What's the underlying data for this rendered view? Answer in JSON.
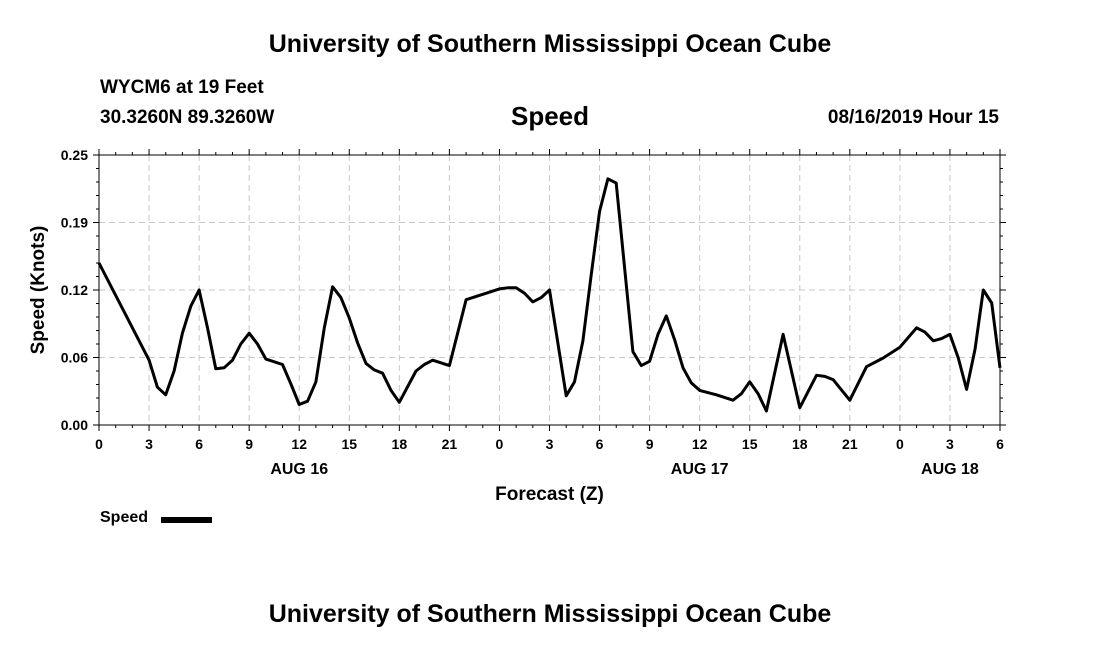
{
  "header": {
    "title": "University of Southern Mississippi Ocean Cube",
    "station": "WYCM6 at 19 Feet",
    "coordinates": "30.3260N 89.3260W",
    "subtitle": "Speed",
    "datetime": "08/16/2019 Hour 15"
  },
  "footer": {
    "title": "University of Southern Mississippi Ocean Cube"
  },
  "legend": {
    "label": "Speed"
  },
  "chart_data": {
    "type": "line",
    "title": "Speed",
    "xlabel": "Forecast (Z)",
    "ylabel": "Speed (Knots)",
    "ylim": [
      0,
      0.25
    ],
    "xlim": [
      "2019-08-16T00:00Z",
      "2019-08-18T06:00Z"
    ],
    "yticks": [
      "0.00",
      "0.06",
      "0.12",
      "0.19",
      "0.25"
    ],
    "xticks": [
      {
        "time": "2019-08-16T00:00Z",
        "label": "0"
      },
      {
        "time": "2019-08-16T03:00Z",
        "label": "3"
      },
      {
        "time": "2019-08-16T06:00Z",
        "label": "6"
      },
      {
        "time": "2019-08-16T09:00Z",
        "label": "9"
      },
      {
        "time": "2019-08-16T12:00Z",
        "label": "12"
      },
      {
        "time": "2019-08-16T15:00Z",
        "label": "15"
      },
      {
        "time": "2019-08-16T18:00Z",
        "label": "18"
      },
      {
        "time": "2019-08-16T21:00Z",
        "label": "21"
      },
      {
        "time": "2019-08-17T00:00Z",
        "label": "0"
      },
      {
        "time": "2019-08-17T03:00Z",
        "label": "3"
      },
      {
        "time": "2019-08-17T06:00Z",
        "label": "6"
      },
      {
        "time": "2019-08-17T09:00Z",
        "label": "9"
      },
      {
        "time": "2019-08-17T12:00Z",
        "label": "12"
      },
      {
        "time": "2019-08-17T15:00Z",
        "label": "15"
      },
      {
        "time": "2019-08-17T18:00Z",
        "label": "18"
      },
      {
        "time": "2019-08-17T21:00Z",
        "label": "21"
      },
      {
        "time": "2019-08-18T00:00Z",
        "label": "0"
      },
      {
        "time": "2019-08-18T03:00Z",
        "label": "3"
      },
      {
        "time": "2019-08-18T06:00Z",
        "label": "6"
      }
    ],
    "date_labels": [
      {
        "time": "2019-08-16T12:00Z",
        "label": "AUG 16"
      },
      {
        "time": "2019-08-17T12:00Z",
        "label": "AUG 17"
      },
      {
        "time": "2019-08-18T03:00Z",
        "label": "AUG 18"
      }
    ],
    "grid": true,
    "legend_position": "bottom-left",
    "series": [
      {
        "name": "Speed",
        "color": "#000000",
        "points": [
          [
            "2019-08-16T00:00Z",
            0.15
          ],
          [
            "2019-08-16T01:00Z",
            0.12
          ],
          [
            "2019-08-16T02:00Z",
            0.09
          ],
          [
            "2019-08-16T03:00Z",
            0.06
          ],
          [
            "2019-08-16T03:30Z",
            0.035
          ],
          [
            "2019-08-16T04:00Z",
            0.028
          ],
          [
            "2019-08-16T04:30Z",
            0.05
          ],
          [
            "2019-08-16T05:00Z",
            0.085
          ],
          [
            "2019-08-16T05:30Z",
            0.11
          ],
          [
            "2019-08-16T06:00Z",
            0.125
          ],
          [
            "2019-08-16T06:30Z",
            0.09
          ],
          [
            "2019-08-16T07:00Z",
            0.052
          ],
          [
            "2019-08-16T07:30Z",
            0.053
          ],
          [
            "2019-08-16T08:00Z",
            0.06
          ],
          [
            "2019-08-16T08:30Z",
            0.075
          ],
          [
            "2019-08-16T09:00Z",
            0.085
          ],
          [
            "2019-08-16T09:30Z",
            0.075
          ],
          [
            "2019-08-16T10:00Z",
            0.061
          ],
          [
            "2019-08-16T11:00Z",
            0.056
          ],
          [
            "2019-08-16T11:30Z",
            0.038
          ],
          [
            "2019-08-16T12:00Z",
            0.019
          ],
          [
            "2019-08-16T12:30Z",
            0.022
          ],
          [
            "2019-08-16T13:00Z",
            0.04
          ],
          [
            "2019-08-16T13:30Z",
            0.09
          ],
          [
            "2019-08-16T14:00Z",
            0.128
          ],
          [
            "2019-08-16T14:30Z",
            0.118
          ],
          [
            "2019-08-16T15:00Z",
            0.099
          ],
          [
            "2019-08-16T15:30Z",
            0.076
          ],
          [
            "2019-08-16T16:00Z",
            0.057
          ],
          [
            "2019-08-16T16:30Z",
            0.051
          ],
          [
            "2019-08-16T17:00Z",
            0.048
          ],
          [
            "2019-08-16T17:30Z",
            0.032
          ],
          [
            "2019-08-16T18:00Z",
            0.021
          ],
          [
            "2019-08-16T19:00Z",
            0.05
          ],
          [
            "2019-08-16T19:30Z",
            0.056
          ],
          [
            "2019-08-16T20:00Z",
            0.06
          ],
          [
            "2019-08-16T21:00Z",
            0.055
          ],
          [
            "2019-08-16T22:00Z",
            0.116
          ],
          [
            "2019-08-16T23:00Z",
            0.121
          ],
          [
            "2019-08-17T00:00Z",
            0.126
          ],
          [
            "2019-08-17T00:30Z",
            0.127
          ],
          [
            "2019-08-17T01:00Z",
            0.127
          ],
          [
            "2019-08-17T01:30Z",
            0.122
          ],
          [
            "2019-08-17T02:00Z",
            0.114
          ],
          [
            "2019-08-17T02:30Z",
            0.118
          ],
          [
            "2019-08-17T03:00Z",
            0.125
          ],
          [
            "2019-08-17T04:00Z",
            0.027
          ],
          [
            "2019-08-17T04:30Z",
            0.04
          ],
          [
            "2019-08-17T05:00Z",
            0.078
          ],
          [
            "2019-08-17T05:30Z",
            0.139
          ],
          [
            "2019-08-17T06:00Z",
            0.198
          ],
          [
            "2019-08-17T06:30Z",
            0.228
          ],
          [
            "2019-08-17T07:00Z",
            0.224
          ],
          [
            "2019-08-17T08:00Z",
            0.068
          ],
          [
            "2019-08-17T08:30Z",
            0.055
          ],
          [
            "2019-08-17T09:00Z",
            0.059
          ],
          [
            "2019-08-17T09:30Z",
            0.084
          ],
          [
            "2019-08-17T10:00Z",
            0.101
          ],
          [
            "2019-08-17T10:30Z",
            0.079
          ],
          [
            "2019-08-17T11:00Z",
            0.053
          ],
          [
            "2019-08-17T11:30Z",
            0.039
          ],
          [
            "2019-08-17T12:00Z",
            0.032
          ],
          [
            "2019-08-17T13:00Z",
            0.028
          ],
          [
            "2019-08-17T14:00Z",
            0.023
          ],
          [
            "2019-08-17T14:30Z",
            0.029
          ],
          [
            "2019-08-17T15:00Z",
            0.04
          ],
          [
            "2019-08-17T15:30Z",
            0.029
          ],
          [
            "2019-08-17T16:00Z",
            0.013
          ],
          [
            "2019-08-17T17:00Z",
            0.084
          ],
          [
            "2019-08-17T18:00Z",
            0.016
          ],
          [
            "2019-08-17T19:00Z",
            0.046
          ],
          [
            "2019-08-17T19:30Z",
            0.045
          ],
          [
            "2019-08-17T20:00Z",
            0.042
          ],
          [
            "2019-08-17T21:00Z",
            0.023
          ],
          [
            "2019-08-17T22:00Z",
            0.054
          ],
          [
            "2019-08-17T23:00Z",
            0.062
          ],
          [
            "2019-08-18T00:00Z",
            0.072
          ],
          [
            "2019-08-18T01:00Z",
            0.09
          ],
          [
            "2019-08-18T01:30Z",
            0.086
          ],
          [
            "2019-08-18T02:00Z",
            0.078
          ],
          [
            "2019-08-18T02:30Z",
            0.08
          ],
          [
            "2019-08-18T03:00Z",
            0.084
          ],
          [
            "2019-08-18T03:30Z",
            0.062
          ],
          [
            "2019-08-18T04:00Z",
            0.033
          ],
          [
            "2019-08-18T04:30Z",
            0.07
          ],
          [
            "2019-08-18T05:00Z",
            0.125
          ],
          [
            "2019-08-18T05:30Z",
            0.113
          ],
          [
            "2019-08-18T06:00Z",
            0.053
          ]
        ]
      }
    ]
  }
}
